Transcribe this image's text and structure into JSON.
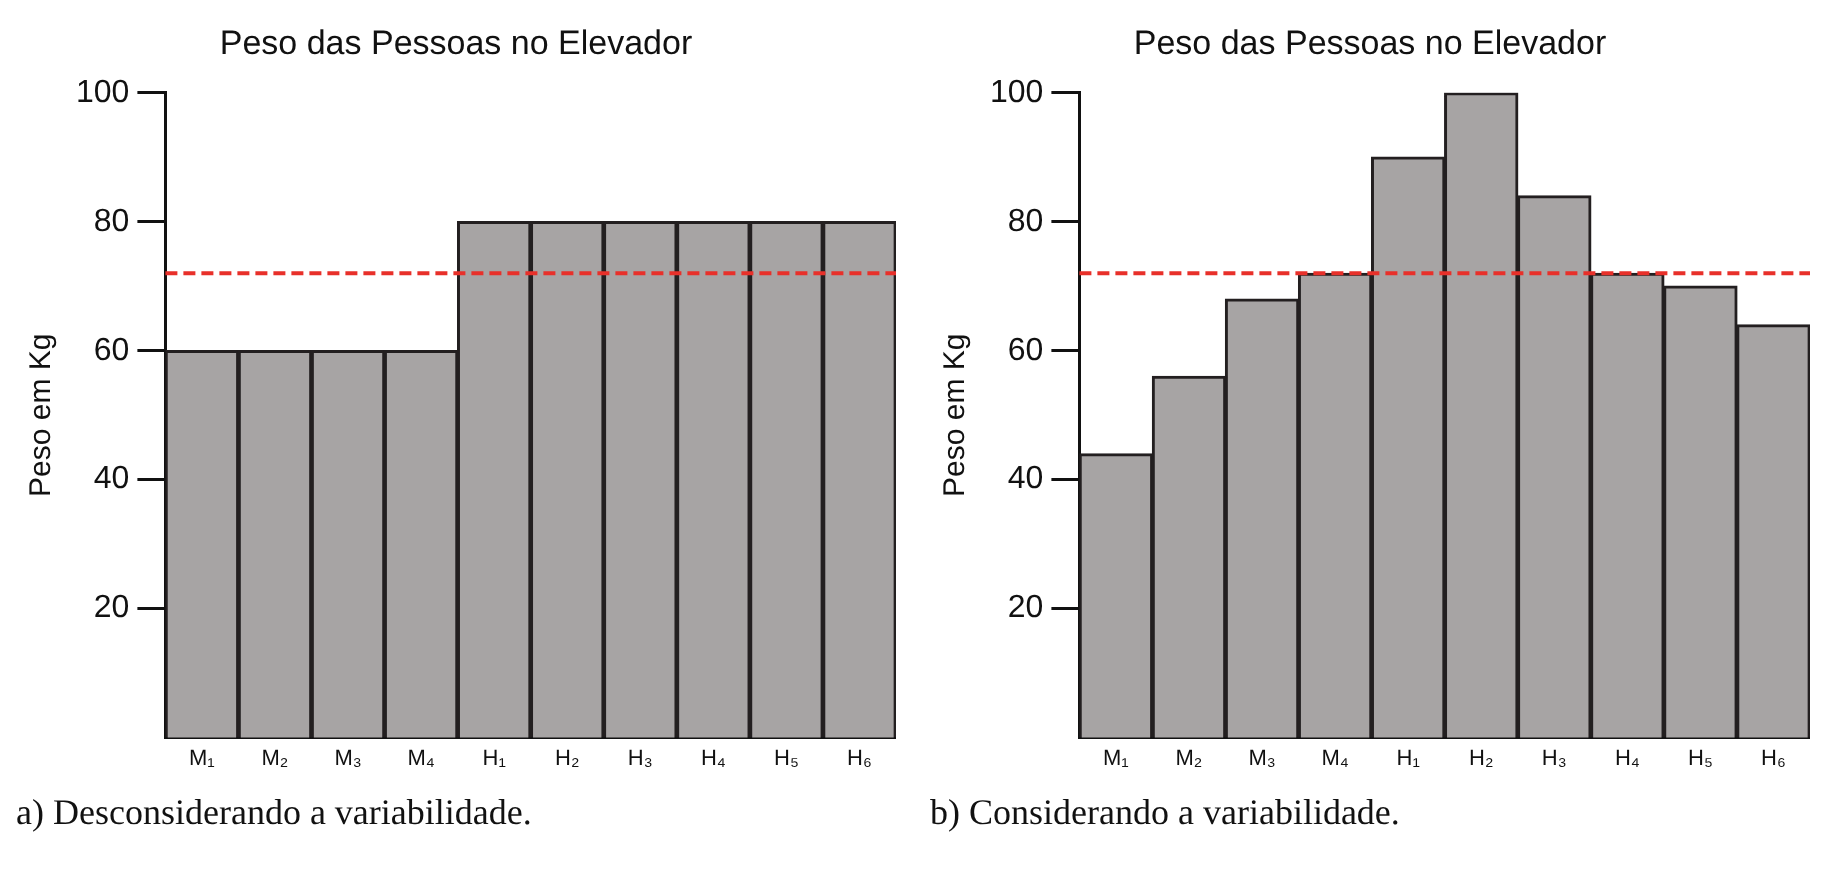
{
  "chart_data": [
    {
      "type": "bar",
      "title": "Peso das Pessoas no Elevador",
      "ylabel": "Peso em Kg",
      "categories": [
        "M₁",
        "M₂",
        "M₃",
        "M₄",
        "H₁",
        "H₂",
        "H₃",
        "H₄",
        "H₅",
        "H₆"
      ],
      "values": [
        60,
        60,
        60,
        60,
        80,
        80,
        80,
        80,
        80,
        80
      ],
      "color": "#a7a4a4",
      "ylim": [
        0,
        100
      ],
      "yticks": [
        20,
        40,
        60,
        80,
        100
      ],
      "grid": false,
      "legend": false,
      "ref_lines": [
        {
          "axis": "y",
          "value": 72,
          "color": "#e8302a",
          "line_style": "dashed"
        }
      ],
      "annotations": [
        "a) Desconsiderando a variabilidade."
      ]
    },
    {
      "type": "bar",
      "title": "Peso das Pessoas no Elevador",
      "ylabel": "Peso em Kg",
      "categories": [
        "M₁",
        "M₂",
        "M₃",
        "M₄",
        "H₁",
        "H₂",
        "H₃",
        "H₄",
        "H₅",
        "H₆"
      ],
      "values": [
        44,
        56,
        68,
        72,
        90,
        100,
        84,
        72,
        70,
        64
      ],
      "color": "#a7a4a4",
      "ylim": [
        0,
        100
      ],
      "yticks": [
        20,
        40,
        60,
        80,
        100
      ],
      "grid": false,
      "legend": false,
      "ref_lines": [
        {
          "axis": "y",
          "value": 72,
          "color": "#e8302a",
          "line_style": "dashed"
        }
      ],
      "annotations": [
        "b) Considerando a variabilidade."
      ]
    }
  ]
}
